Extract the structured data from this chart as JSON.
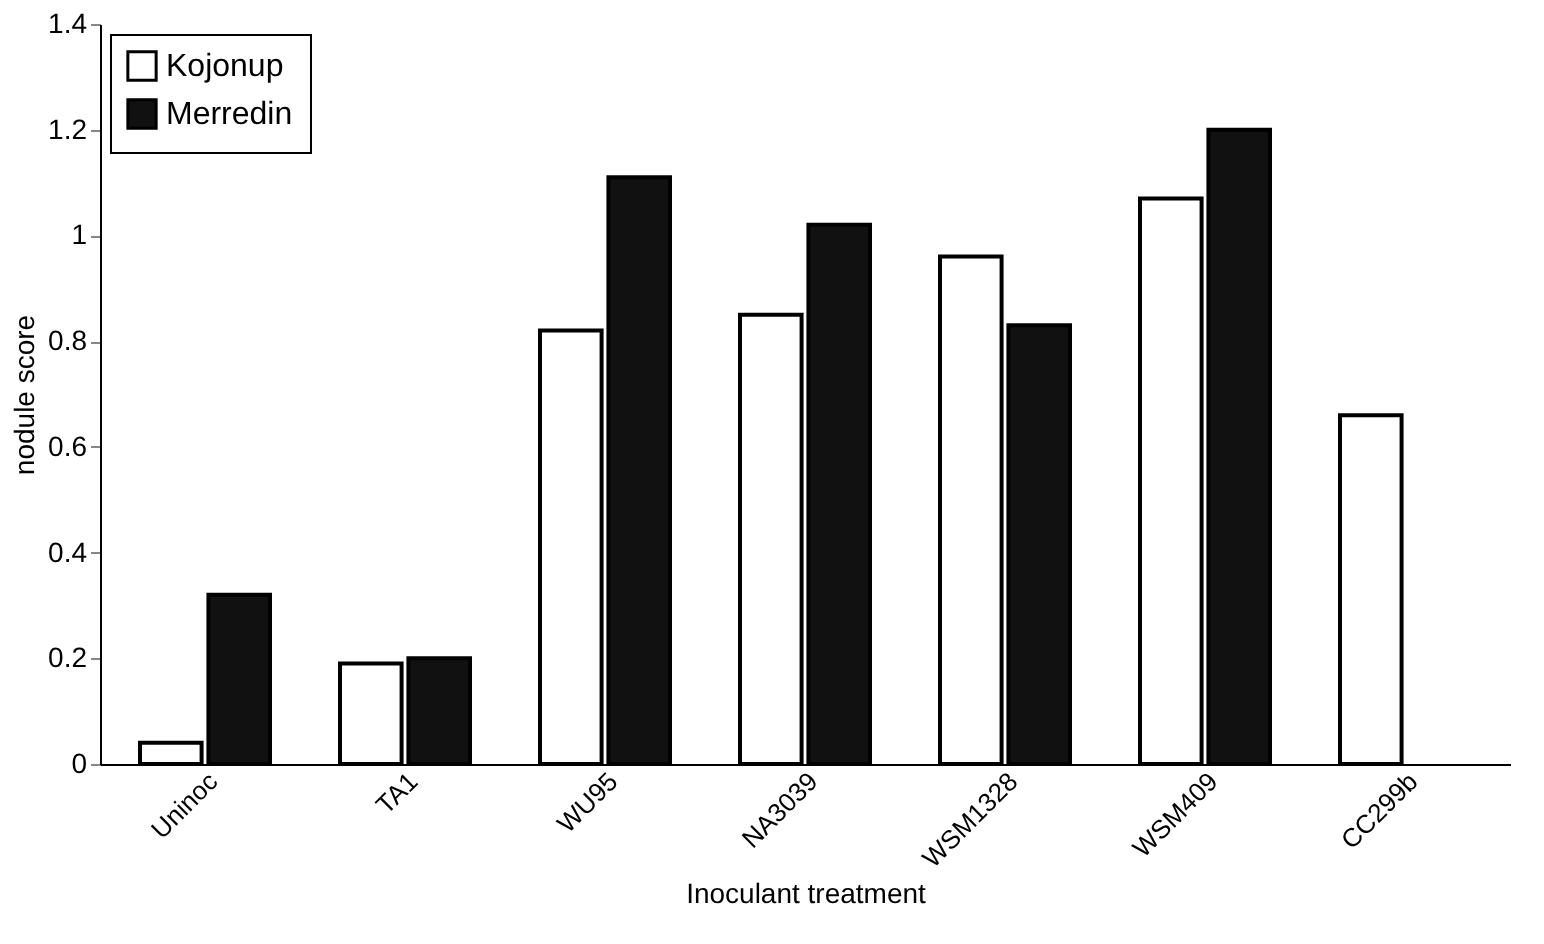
{
  "chart_data": {
    "type": "bar",
    "xlabel": "Inoculant treatment",
    "ylabel": "nodule score",
    "categories": [
      "Uninoc",
      "TA1",
      "WU95",
      "NA3039",
      "WSM1328",
      "WSM409",
      "CC299b"
    ],
    "series": [
      {
        "name": "Kojonup",
        "color": "#ffffff",
        "values": [
          0.04,
          0.19,
          0.82,
          0.85,
          0.96,
          1.07,
          0.66
        ]
      },
      {
        "name": "Merredin",
        "color": "#111111",
        "values": [
          0.32,
          0.2,
          1.11,
          1.02,
          0.83,
          1.2,
          null
        ]
      }
    ],
    "ylim": [
      0,
      1.4
    ],
    "yticks": [
      0,
      0.2,
      0.4,
      0.6,
      0.8,
      1,
      1.2,
      1.4
    ],
    "grid": false,
    "legend": "top left"
  }
}
